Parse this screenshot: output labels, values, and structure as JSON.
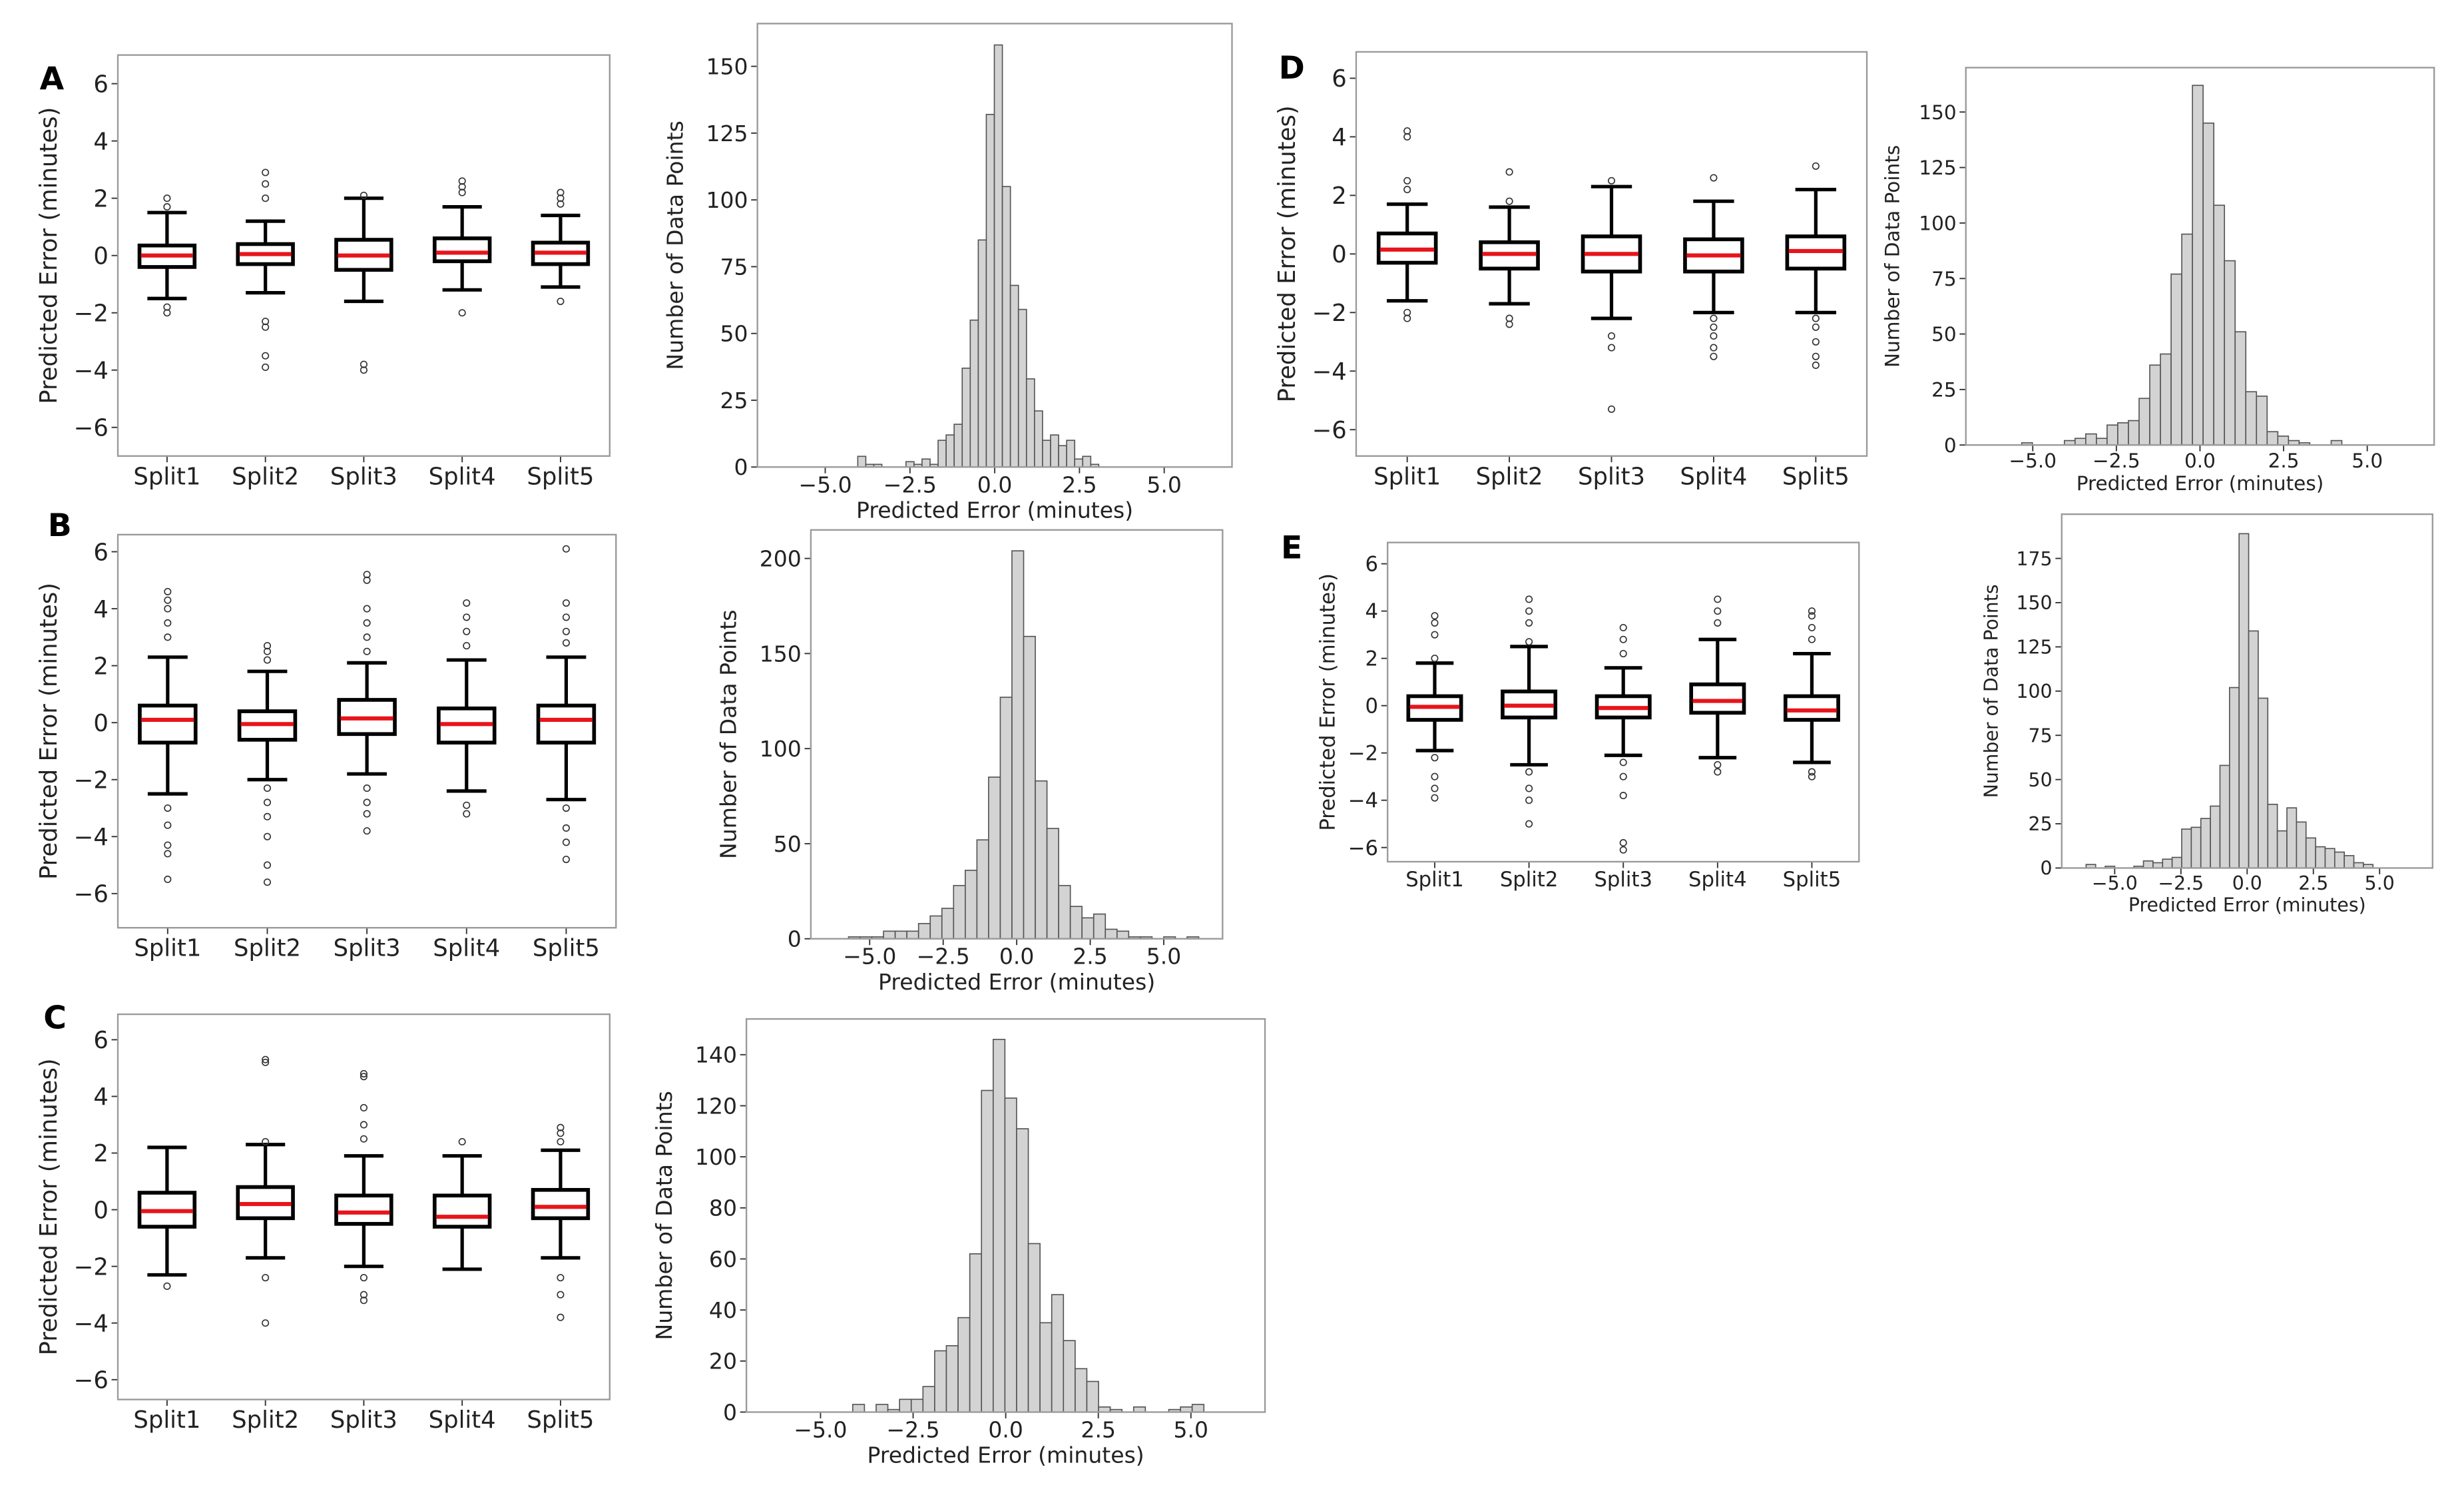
{
  "colors": {
    "median": "#e8141b",
    "bar_fill": "#d3d3d3",
    "box": "#000000"
  },
  "chart_data": [
    {
      "panel_label": "A",
      "type": "box",
      "ylabel": "Predicted Error (minutes)",
      "categories": [
        "Split1",
        "Split2",
        "Split3",
        "Split4",
        "Split5"
      ],
      "ylim": [
        -7,
        7
      ],
      "yticks": [
        6,
        4,
        2,
        0,
        -2,
        -4,
        -6
      ],
      "ytick_labels": [
        "6",
        "4",
        "2",
        "0",
        "−2",
        "−4",
        "−6"
      ],
      "boxes": [
        {
          "q1": -0.4,
          "median": 0,
          "q3": 0.35,
          "whislo": -1.5,
          "whishi": 1.5,
          "fliers": [
            1.7,
            2.0,
            -1.8,
            -2.0
          ]
        },
        {
          "q1": -0.3,
          "median": 0.05,
          "q3": 0.4,
          "whislo": -1.3,
          "whishi": 1.2,
          "fliers": [
            2.0,
            2.5,
            2.9,
            -2.3,
            -2.5,
            -3.5,
            -3.9
          ]
        },
        {
          "q1": -0.5,
          "median": 0,
          "q3": 0.55,
          "whislo": -1.6,
          "whishi": 2.0,
          "fliers": [
            2.1,
            -3.8,
            -4.0
          ]
        },
        {
          "q1": -0.2,
          "median": 0.1,
          "q3": 0.6,
          "whislo": -1.2,
          "whishi": 1.7,
          "fliers": [
            2.2,
            2.4,
            2.6,
            -2.0
          ]
        },
        {
          "q1": -0.3,
          "median": 0.1,
          "q3": 0.45,
          "whislo": -1.1,
          "whishi": 1.4,
          "fliers": [
            1.8,
            2.0,
            2.2,
            -1.6
          ]
        }
      ]
    },
    {
      "type": "histogram",
      "xlabel": "Predicted Error (minutes)",
      "ylabel": "Number of Data Points",
      "xlim": [
        -7,
        7
      ],
      "ylim": [
        0,
        166
      ],
      "xticks": [
        -5,
        -2.5,
        0,
        2.5,
        5
      ],
      "xtick_labels": [
        "−5.0",
        "−2.5",
        "0.0",
        "2.5",
        "5.0"
      ],
      "yticks": [
        0,
        25,
        50,
        75,
        100,
        125,
        150
      ],
      "ytick_labels": [
        "0",
        "25",
        "50",
        "75",
        "100",
        "125",
        "150"
      ],
      "bin_start": -4.04,
      "bin_width": 0.237,
      "counts": [
        4,
        1,
        1,
        0,
        0,
        0,
        2,
        1,
        3,
        1,
        10,
        12,
        16,
        37,
        55,
        85,
        132,
        158,
        105,
        68,
        59,
        33,
        21,
        10,
        12,
        8,
        10,
        3,
        4,
        1
      ]
    },
    {
      "panel_label": "B",
      "type": "box",
      "ylabel": "Predicted Error (minutes)",
      "categories": [
        "Split1",
        "Split2",
        "Split3",
        "Split4",
        "Split5"
      ],
      "ylim": [
        -7.2,
        6.6
      ],
      "yticks": [
        6,
        4,
        2,
        0,
        -2,
        -4,
        -6
      ],
      "ytick_labels": [
        "6",
        "4",
        "2",
        "0",
        "−2",
        "−4",
        "−6"
      ],
      "boxes": [
        {
          "q1": -0.7,
          "median": 0.1,
          "q3": 0.6,
          "whislo": -2.5,
          "whishi": 2.3,
          "fliers": [
            3.0,
            3.5,
            4.0,
            4.3,
            4.6,
            -3.0,
            -3.6,
            -4.3,
            -4.6,
            -5.5
          ]
        },
        {
          "q1": -0.6,
          "median": -0.05,
          "q3": 0.4,
          "whislo": -2.0,
          "whishi": 1.8,
          "fliers": [
            2.2,
            2.5,
            2.7,
            -2.3,
            -2.8,
            -3.3,
            -4.0,
            -5.0,
            -5.6
          ]
        },
        {
          "q1": -0.4,
          "median": 0.15,
          "q3": 0.8,
          "whislo": -1.8,
          "whishi": 2.1,
          "fliers": [
            2.5,
            3.0,
            3.5,
            4.0,
            5.0,
            5.2,
            -2.3,
            -2.8,
            -3.2,
            -3.8
          ]
        },
        {
          "q1": -0.7,
          "median": -0.05,
          "q3": 0.5,
          "whislo": -2.4,
          "whishi": 2.2,
          "fliers": [
            2.7,
            3.2,
            3.7,
            4.2,
            -2.9,
            -3.2
          ]
        },
        {
          "q1": -0.7,
          "median": 0.1,
          "q3": 0.6,
          "whislo": -2.7,
          "whishi": 2.3,
          "fliers": [
            2.8,
            3.2,
            3.7,
            4.2,
            6.1,
            -3.0,
            -3.7,
            -4.2,
            -4.8
          ]
        }
      ]
    },
    {
      "type": "histogram",
      "xlabel": "Predicted Error (minutes)",
      "ylabel": "Number of Data Points",
      "xlim": [
        -7,
        7
      ],
      "ylim": [
        0,
        215
      ],
      "xticks": [
        -5,
        -2.5,
        0,
        2.5,
        5
      ],
      "xtick_labels": [
        "−5.0",
        "−2.5",
        "0.0",
        "2.5",
        "5.0"
      ],
      "yticks": [
        0,
        50,
        100,
        150,
        200
      ],
      "ytick_labels": [
        "0",
        "50",
        "100",
        "150",
        "200"
      ],
      "bin_start": -5.72,
      "bin_width": 0.397,
      "counts": [
        1,
        1,
        1,
        4,
        4,
        4,
        8,
        12,
        16,
        28,
        36,
        52,
        85,
        127,
        204,
        159,
        83,
        58,
        28,
        17,
        11,
        13,
        5,
        4,
        1,
        1,
        0,
        1,
        0,
        1
      ]
    },
    {
      "panel_label": "C",
      "type": "box",
      "ylabel": "Predicted Error (minutes)",
      "categories": [
        "Split1",
        "Split2",
        "Split3",
        "Split4",
        "Split5"
      ],
      "ylim": [
        -6.7,
        6.9
      ],
      "yticks": [
        6,
        4,
        2,
        0,
        -2,
        -4,
        -6
      ],
      "ytick_labels": [
        "6",
        "4",
        "2",
        "0",
        "−2",
        "−4",
        "−6"
      ],
      "boxes": [
        {
          "q1": -0.6,
          "median": -0.05,
          "q3": 0.6,
          "whislo": -2.3,
          "whishi": 2.2,
          "fliers": [
            -2.7
          ]
        },
        {
          "q1": -0.3,
          "median": 0.2,
          "q3": 0.8,
          "whislo": -1.7,
          "whishi": 2.3,
          "fliers": [
            2.4,
            5.2,
            5.3,
            -2.4,
            -4.0
          ]
        },
        {
          "q1": -0.5,
          "median": -0.1,
          "q3": 0.5,
          "whislo": -2.0,
          "whishi": 1.9,
          "fliers": [
            2.5,
            3.0,
            3.6,
            4.7,
            4.8,
            -2.4,
            -3.0,
            -3.2
          ]
        },
        {
          "q1": -0.6,
          "median": -0.25,
          "q3": 0.5,
          "whislo": -2.1,
          "whishi": 1.9,
          "fliers": [
            2.4
          ]
        },
        {
          "q1": -0.3,
          "median": 0.1,
          "q3": 0.7,
          "whislo": -1.7,
          "whishi": 2.1,
          "fliers": [
            2.4,
            2.7,
            2.9,
            -2.4,
            -3.0,
            -3.8
          ]
        }
      ]
    },
    {
      "type": "histogram",
      "xlabel": "Predicted Error (minutes)",
      "ylabel": "Number of Data Points",
      "xlim": [
        -7,
        7
      ],
      "ylim": [
        0,
        154
      ],
      "xticks": [
        -5,
        -2.5,
        0,
        2.5,
        5
      ],
      "xtick_labels": [
        "−5.0",
        "−2.5",
        "0.0",
        "2.5",
        "5.0"
      ],
      "yticks": [
        0,
        20,
        40,
        60,
        80,
        100,
        120,
        140
      ],
      "ytick_labels": [
        "0",
        "20",
        "40",
        "60",
        "80",
        "100",
        "120",
        "140"
      ],
      "bin_start": -4.13,
      "bin_width": 0.316,
      "counts": [
        3,
        0,
        3,
        1,
        5,
        5,
        10,
        24,
        26,
        37,
        62,
        126,
        146,
        123,
        111,
        66,
        35,
        46,
        28,
        17,
        12,
        2,
        1,
        0,
        2,
        0,
        0,
        1,
        2,
        3
      ]
    },
    {
      "panel_label": "D",
      "type": "box",
      "ylabel": "Predicted Error (minutes)",
      "categories": [
        "Split1",
        "Split2",
        "Split3",
        "Split4",
        "Split5"
      ],
      "ylim": [
        -6.9,
        6.9
      ],
      "yticks": [
        6,
        4,
        2,
        0,
        -2,
        -4,
        -6
      ],
      "ytick_labels": [
        "6",
        "4",
        "2",
        "0",
        "−2",
        "−4",
        "−6"
      ],
      "boxes": [
        {
          "q1": -0.3,
          "median": 0.15,
          "q3": 0.7,
          "whislo": -1.6,
          "whishi": 1.7,
          "fliers": [
            2.2,
            2.5,
            4.0,
            4.2,
            -2.0,
            -2.2
          ]
        },
        {
          "q1": -0.5,
          "median": 0,
          "q3": 0.4,
          "whislo": -1.7,
          "whishi": 1.6,
          "fliers": [
            1.8,
            2.8,
            -2.2,
            -2.4
          ]
        },
        {
          "q1": -0.6,
          "median": 0,
          "q3": 0.6,
          "whislo": -2.2,
          "whishi": 2.3,
          "fliers": [
            2.5,
            -2.8,
            -3.2,
            -5.3
          ]
        },
        {
          "q1": -0.6,
          "median": -0.05,
          "q3": 0.5,
          "whislo": -2.0,
          "whishi": 1.8,
          "fliers": [
            2.6,
            -2.2,
            -2.5,
            -2.8,
            -3.2,
            -3.5
          ]
        },
        {
          "q1": -0.5,
          "median": 0.1,
          "q3": 0.6,
          "whislo": -2.0,
          "whishi": 2.2,
          "fliers": [
            3.0,
            -2.2,
            -2.5,
            -3.0,
            -3.5,
            -3.8
          ]
        }
      ]
    },
    {
      "type": "histogram",
      "xlabel": "Predicted Error (minutes)",
      "ylabel": "Number of Data Points",
      "xlim": [
        -7,
        7
      ],
      "ylim": [
        0,
        170
      ],
      "xticks": [
        -5,
        -2.5,
        0,
        2.5,
        5
      ],
      "xtick_labels": [
        "−5.0",
        "−2.5",
        "0.0",
        "2.5",
        "5.0"
      ],
      "yticks": [
        0,
        25,
        50,
        75,
        100,
        125,
        150
      ],
      "ytick_labels": [
        "0",
        "25",
        "50",
        "75",
        "100",
        "125",
        "150"
      ],
      "bin_start": -5.33,
      "bin_width": 0.319,
      "counts": [
        1,
        0,
        0,
        0,
        2,
        3,
        5,
        3,
        9,
        10,
        11,
        21,
        36,
        41,
        77,
        95,
        162,
        145,
        108,
        83,
        51,
        24,
        22,
        6,
        4,
        2,
        1,
        0,
        0,
        2
      ]
    },
    {
      "panel_label": "E",
      "type": "box",
      "ylabel": "Predicted Error (minutes)",
      "categories": [
        "Split1",
        "Split2",
        "Split3",
        "Split4",
        "Split5"
      ],
      "ylim": [
        -6.6,
        6.9
      ],
      "yticks": [
        6,
        4,
        2,
        0,
        -2,
        -4,
        -6
      ],
      "ytick_labels": [
        "6",
        "4",
        "2",
        "0",
        "−2",
        "−4",
        "−6"
      ],
      "boxes": [
        {
          "q1": -0.6,
          "median": -0.05,
          "q3": 0.4,
          "whislo": -1.9,
          "whishi": 1.8,
          "fliers": [
            2.0,
            3.0,
            3.5,
            3.8,
            -2.2,
            -3.0,
            -3.5,
            -3.9
          ]
        },
        {
          "q1": -0.5,
          "median": 0,
          "q3": 0.6,
          "whislo": -2.5,
          "whishi": 2.5,
          "fliers": [
            2.7,
            3.5,
            4.0,
            4.5,
            -2.8,
            -3.5,
            -4.0,
            -5.0
          ]
        },
        {
          "q1": -0.5,
          "median": -0.1,
          "q3": 0.4,
          "whislo": -2.1,
          "whishi": 1.6,
          "fliers": [
            2.2,
            2.8,
            3.3,
            -2.4,
            -3.0,
            -3.8,
            -5.8,
            -6.1
          ]
        },
        {
          "q1": -0.3,
          "median": 0.2,
          "q3": 0.9,
          "whislo": -2.2,
          "whishi": 2.8,
          "fliers": [
            3.5,
            4.0,
            4.5,
            -2.5,
            -2.8
          ]
        },
        {
          "q1": -0.6,
          "median": -0.2,
          "q3": 0.4,
          "whislo": -2.4,
          "whishi": 2.2,
          "fliers": [
            2.8,
            3.3,
            3.8,
            4.0,
            -2.8,
            -3.0
          ]
        }
      ]
    },
    {
      "type": "histogram",
      "xlabel": "Predicted Error (minutes)",
      "ylabel": "Number of Data Points",
      "xlim": [
        -7,
        7
      ],
      "ylim": [
        0,
        200
      ],
      "xticks": [
        -5,
        -2.5,
        0,
        2.5,
        5
      ],
      "xtick_labels": [
        "−5.0",
        "−2.5",
        "0.0",
        "2.5",
        "5.0"
      ],
      "yticks": [
        0,
        25,
        50,
        75,
        100,
        125,
        150,
        175
      ],
      "ytick_labels": [
        "0",
        "25",
        "50",
        "75",
        "100",
        "125",
        "150",
        "175"
      ],
      "bin_start": -6.08,
      "bin_width": 0.361,
      "counts": [
        2,
        0,
        1,
        0,
        0,
        1,
        4,
        3,
        5,
        6,
        22,
        23,
        28,
        35,
        58,
        102,
        189,
        134,
        96,
        36,
        21,
        34,
        26,
        17,
        12,
        11,
        9,
        7,
        3,
        2
      ]
    }
  ]
}
